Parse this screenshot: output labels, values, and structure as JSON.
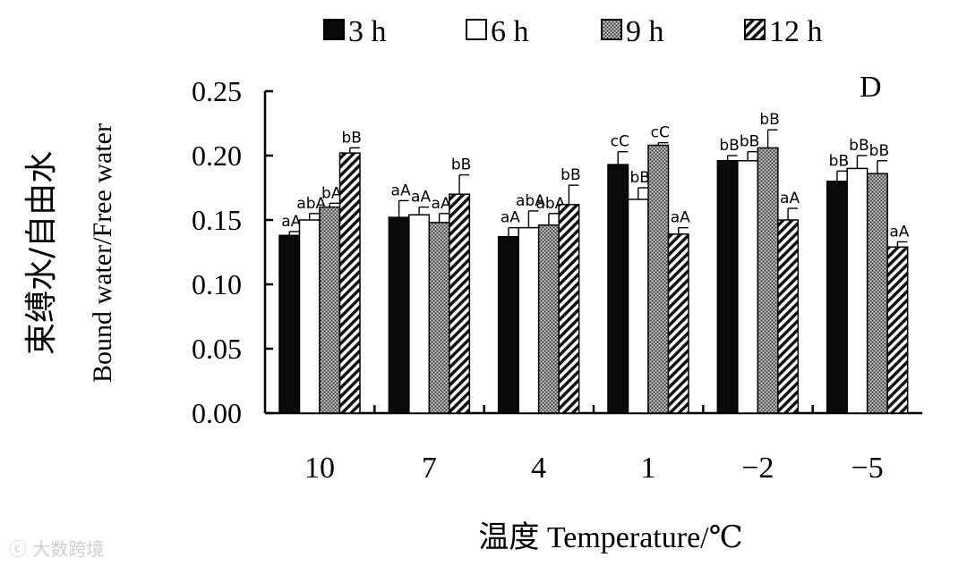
{
  "chart_data": {
    "type": "bar",
    "panel_label": "D",
    "ylabel_cn": "束缚水/自由水",
    "ylabel_en": "Bound water/Free water",
    "xlabel": "温度 Temperature/℃",
    "ylim": [
      0,
      0.25
    ],
    "yticks": [
      "0.00",
      "0.05",
      "0.10",
      "0.15",
      "0.20",
      "0.25"
    ],
    "categories": [
      "10",
      "7",
      "4",
      "1",
      "−2",
      "−5"
    ],
    "series": [
      {
        "name": "3 h",
        "pattern": "solid",
        "values": [
          0.138,
          0.152,
          0.137,
          0.193,
          0.196,
          0.18
        ],
        "errors": [
          0.003,
          0.013,
          0.007,
          0.01,
          0.004,
          0.008
        ],
        "labels": [
          "aA",
          "aA",
          "aA",
          "cC",
          "bB",
          "bB"
        ]
      },
      {
        "name": "6 h",
        "pattern": "white",
        "values": [
          0.15,
          0.154,
          0.144,
          0.166,
          0.196,
          0.19
        ],
        "errors": [
          0.005,
          0.006,
          0.013,
          0.009,
          0.007,
          0.01
        ],
        "labels": [
          "abA",
          "aA",
          "abA",
          "bB",
          "bB",
          "bB"
        ]
      },
      {
        "name": "9 h",
        "pattern": "stipple",
        "values": [
          0.16,
          0.148,
          0.146,
          0.208,
          0.206,
          0.186
        ],
        "errors": [
          0.003,
          0.007,
          0.009,
          0.002,
          0.014,
          0.01
        ],
        "labels": [
          "bA",
          "aA",
          "abA",
          "cC",
          "bB",
          "bB"
        ]
      },
      {
        "name": "12 h",
        "pattern": "hatch",
        "values": [
          0.202,
          0.17,
          0.162,
          0.139,
          0.15,
          0.129
        ],
        "errors": [
          0.004,
          0.015,
          0.015,
          0.005,
          0.009,
          0.004
        ],
        "labels": [
          "bB",
          "bB",
          "bB",
          "aA",
          "aA",
          "aA"
        ]
      }
    ]
  },
  "watermark": "大数跨境"
}
